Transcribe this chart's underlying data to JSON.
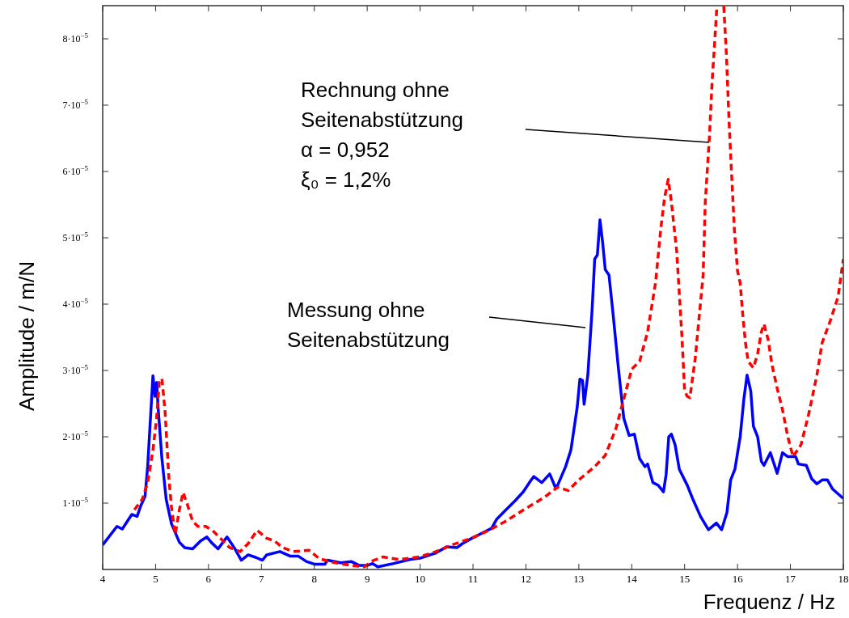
{
  "chart_data": {
    "type": "line",
    "xlabel": "Frequenz / Hz",
    "ylabel": "Amplitude / m/N",
    "xlim": [
      4,
      18
    ],
    "xticks": [
      4,
      5,
      6,
      7,
      8,
      9,
      10,
      11,
      12,
      13,
      14,
      15,
      16,
      17,
      18
    ],
    "ylim": [
      0,
      8.5e-05
    ],
    "yticks": [
      {
        "value": 1e-05,
        "label": "1·10$^{−5}$"
      },
      {
        "value": 2e-05,
        "label": "2·10$^{−5}$"
      },
      {
        "value": 3e-05,
        "label": "3·10$^{−5}$"
      },
      {
        "value": 4e-05,
        "label": "4·10$^{−5}$"
      },
      {
        "value": 5e-05,
        "label": "5·10$^{−5}$"
      },
      {
        "value": 6e-05,
        "label": "6·10$^{−5}$"
      },
      {
        "value": 7e-05,
        "label": "7·10$^{−5}$"
      },
      {
        "value": 8e-05,
        "label": "8·10$^{−5}$"
      }
    ],
    "grid": false,
    "series": [
      {
        "color": "#0000ff",
        "line_style": "solid",
        "x": [
          4.0,
          4.27,
          4.37,
          4.55,
          4.65,
          4.72,
          4.8,
          4.85,
          4.9,
          4.95,
          4.99,
          5.02,
          5.05,
          5.12,
          5.2,
          5.3,
          5.45,
          5.55,
          5.7,
          5.85,
          5.97,
          6.05,
          6.18,
          6.35,
          6.5,
          6.62,
          6.75,
          6.9,
          7.02,
          7.1,
          7.35,
          7.55,
          7.7,
          7.85,
          8.0,
          8.2,
          8.25,
          8.5,
          8.7,
          8.85,
          9.0,
          9.1,
          9.2,
          9.5,
          9.8,
          10.0,
          10.3,
          10.5,
          10.7,
          10.8,
          11.0,
          11.15,
          11.35,
          11.45,
          11.6,
          11.8,
          11.95,
          12.1,
          12.15,
          12.3,
          12.45,
          12.55,
          12.6,
          12.75,
          12.85,
          12.97,
          13.02,
          13.07,
          13.1,
          13.17,
          13.25,
          13.3,
          13.35,
          13.4,
          13.45,
          13.5,
          13.57,
          13.65,
          13.75,
          13.85,
          13.95,
          14.05,
          14.15,
          14.25,
          14.3,
          14.4,
          14.5,
          14.6,
          14.65,
          14.7,
          14.75,
          14.82,
          14.9,
          15.05,
          15.15,
          15.3,
          15.45,
          15.6,
          15.7,
          15.8,
          15.87,
          15.95,
          16.05,
          16.12,
          16.18,
          16.25,
          16.3,
          16.38,
          16.45,
          16.5,
          16.62,
          16.75,
          16.85,
          16.95,
          17.1,
          17.15,
          17.3,
          17.4,
          17.5,
          17.6,
          17.7,
          17.8,
          18.0
        ],
        "values": [
          3.7e-06,
          6.5e-06,
          6.1e-06,
          8.3e-06,
          8e-06,
          9.6e-06,
          1.1e-05,
          1.55e-05,
          2.24e-05,
          2.92e-05,
          2.61e-05,
          2.82e-05,
          2.41e-05,
          1.67e-05,
          1.06e-05,
          6.9e-06,
          4.1e-06,
          3.3e-06,
          3.1e-06,
          4.3e-06,
          4.9e-06,
          4.1e-06,
          3.1e-06,
          4.9e-06,
          3.1e-06,
          1.4e-06,
          2.2e-06,
          1.8e-06,
          1.4e-06,
          2.2e-06,
          2.7e-06,
          2e-06,
          2e-06,
          1.2e-06,
          8e-07,
          8e-07,
          1.4e-06,
          1e-06,
          1.2e-06,
          6e-07,
          6e-07,
          9e-07,
          4e-07,
          9e-07,
          1.5e-06,
          1.7e-06,
          2.5e-06,
          3.4e-06,
          3.3e-06,
          3.9e-06,
          4.8e-06,
          5.4e-06,
          6.2e-06,
          7.6e-06,
          8.8e-06,
          1.04e-05,
          1.17e-05,
          1.35e-05,
          1.4e-05,
          1.31e-05,
          1.44e-05,
          1.25e-05,
          1.27e-05,
          1.55e-05,
          1.8e-05,
          2.45e-05,
          2.87e-05,
          2.85e-05,
          2.49e-05,
          2.93e-05,
          3.9e-05,
          4.68e-05,
          4.74e-05,
          5.27e-05,
          4.93e-05,
          4.52e-05,
          4.44e-05,
          3.83e-05,
          3.02e-05,
          2.28e-05,
          2.02e-05,
          2.04e-05,
          1.67e-05,
          1.55e-05,
          1.59e-05,
          1.31e-05,
          1.27e-05,
          1.17e-05,
          1.43e-05,
          2e-05,
          2.04e-05,
          1.88e-05,
          1.51e-05,
          1.27e-05,
          1.07e-05,
          8e-06,
          6e-06,
          7e-06,
          6e-06,
          8.6e-06,
          1.35e-05,
          1.51e-05,
          2e-05,
          2.57e-05,
          2.93e-05,
          2.69e-05,
          2.16e-05,
          2e-05,
          1.63e-05,
          1.57e-05,
          1.76e-05,
          1.45e-05,
          1.76e-05,
          1.7e-05,
          1.7e-05,
          1.59e-05,
          1.57e-05,
          1.37e-05,
          1.29e-05,
          1.35e-05,
          1.35e-05,
          1.21e-05,
          1.07e-05
        ]
      },
      {
        "color": "#ff0000",
        "line_style": "dashed",
        "x": [
          4.6,
          4.75,
          4.85,
          4.95,
          5.02,
          5.07,
          5.12,
          5.18,
          5.25,
          5.3,
          5.37,
          5.45,
          5.52,
          5.6,
          5.7,
          5.8,
          5.95,
          6.1,
          6.25,
          6.4,
          6.6,
          6.75,
          6.92,
          7.1,
          7.25,
          7.4,
          7.6,
          7.9,
          8.1,
          8.4,
          8.7,
          8.95,
          9.1,
          9.3,
          9.6,
          10.0,
          10.3,
          10.6,
          11.0,
          11.3,
          11.6,
          12.0,
          12.35,
          12.6,
          12.8,
          13.0,
          13.3,
          13.5,
          13.7,
          13.85,
          14.0,
          14.15,
          14.3,
          14.45,
          14.55,
          14.62,
          14.69,
          14.75,
          14.85,
          14.95,
          15.0,
          15.05,
          15.1,
          15.2,
          15.35,
          15.39,
          15.47,
          15.52,
          15.57,
          15.61,
          15.68,
          15.74,
          15.79,
          15.84,
          15.89,
          15.94,
          16.0,
          16.05,
          16.1,
          16.15,
          16.2,
          16.3,
          16.38,
          16.45,
          16.5,
          16.58,
          16.65,
          16.75,
          16.85,
          16.95,
          17.05,
          17.2,
          17.35,
          17.5,
          17.6,
          17.75,
          17.9,
          18.0
        ],
        "values": [
          9e-06,
          1.06e-05,
          1.31e-05,
          1.8e-05,
          2.29e-05,
          2.82e-05,
          2.88e-05,
          2.37e-05,
          1.39e-05,
          9.4e-06,
          5.3e-06,
          9e-06,
          1.16e-05,
          9.8e-06,
          7.3e-06,
          6.5e-06,
          6.5e-06,
          5.7e-06,
          4.5e-06,
          3.3e-06,
          2.7e-06,
          3.9e-06,
          5.9e-06,
          4.7e-06,
          4.3e-06,
          3.3e-06,
          2.7e-06,
          2.9e-06,
          1.6e-06,
          1e-06,
          6e-07,
          4e-07,
          1.3e-06,
          1.9e-06,
          1.5e-06,
          1.9e-06,
          2.7e-06,
          3.7e-06,
          4.8e-06,
          5.9e-06,
          7.2e-06,
          9.2e-06,
          1.09e-05,
          1.24e-05,
          1.19e-05,
          1.35e-05,
          1.55e-05,
          1.72e-05,
          2.12e-05,
          2.57e-05,
          3.02e-05,
          3.14e-05,
          3.58e-05,
          4.32e-05,
          5.14e-05,
          5.6e-05,
          5.88e-05,
          5.54e-05,
          4.8e-05,
          3.5e-05,
          2.69e-05,
          2.61e-05,
          2.59e-05,
          3.18e-05,
          4.44e-05,
          5.53e-05,
          6.54e-05,
          7.36e-05,
          7.97e-05,
          8.49e-05,
          null,
          8.49e-05,
          7.76e-05,
          6.75e-05,
          5.93e-05,
          5.13e-05,
          4.5e-05,
          4.32e-05,
          3.83e-05,
          3.42e-05,
          3.14e-05,
          3.04e-05,
          3.25e-05,
          3.58e-05,
          3.7e-05,
          3.46e-05,
          3.09e-05,
          2.73e-05,
          2.41e-05,
          2e-05,
          1.7e-05,
          1.88e-05,
          2.36e-05,
          2.93e-05,
          3.42e-05,
          3.74e-05,
          4.11e-05,
          4.68e-05
        ]
      }
    ],
    "annotations": [
      "Rechnung ohne\nSeitenabstützung\nα = 0,952\nξ₀ = 1,2%",
      "Messung ohne\nSeitenabstützung"
    ]
  }
}
